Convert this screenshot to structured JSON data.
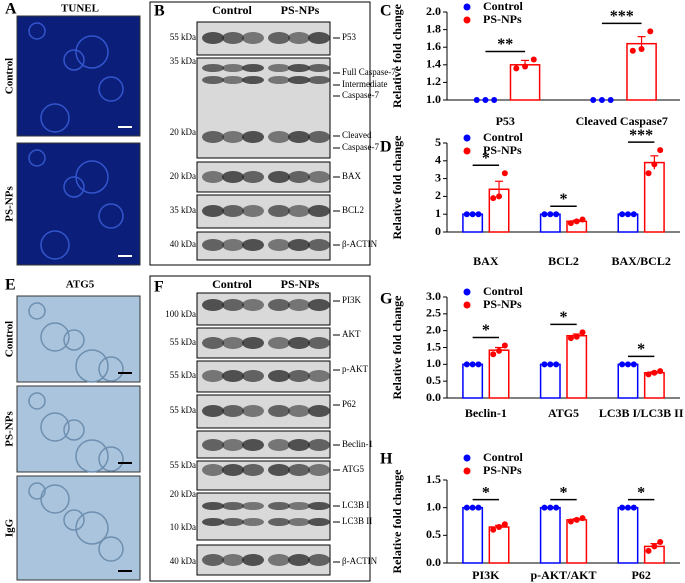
{
  "figure": {
    "images": [
      {
        "letter": "A",
        "title": "TUNEL",
        "labels": [
          "Control",
          "PS-NPs"
        ]
      },
      {
        "letter": "E",
        "title": "ATG5",
        "labels": [
          "Control",
          "PS-NPs",
          "IgG"
        ]
      }
    ],
    "blots": [
      {
        "letter": "B",
        "lanes": [
          "Control",
          "PS-NPs"
        ],
        "rows": [
          {
            "kda": [
              "55 kDa"
            ],
            "labels": [
              "P53"
            ]
          },
          {
            "kda": [
              "35 kDa",
              "20 kDa"
            ],
            "labels": [
              "Full Caspase-7",
              "Intermediate",
              "Caspase-7",
              "Cleaved",
              "Caspase-7"
            ]
          },
          {
            "kda": [
              "20 kDa"
            ],
            "labels": [
              "BAX"
            ]
          },
          {
            "kda": [
              "35 kDa"
            ],
            "labels": [
              "BCL2"
            ]
          },
          {
            "kda": [
              "40 kDa"
            ],
            "labels": [
              "β-ACTIN"
            ]
          }
        ]
      },
      {
        "letter": "F",
        "lanes": [
          "Control",
          "PS-NPs"
        ],
        "rows": [
          {
            "kda": [
              "100 kDa"
            ],
            "labels": [
              "PI3K"
            ]
          },
          {
            "kda": [
              "55 kDa"
            ],
            "labels": [
              "AKT"
            ]
          },
          {
            "kda": [
              "55 kDa"
            ],
            "labels": [
              "p-AKT"
            ]
          },
          {
            "kda": [
              "55 kDa"
            ],
            "labels": [
              "P62"
            ]
          },
          {
            "kda": [],
            "labels": [
              "Beclin-1"
            ]
          },
          {
            "kda": [
              "55 kDa"
            ],
            "labels": [
              "ATG5"
            ]
          },
          {
            "kda": [
              "20 kDa",
              "10 kDa"
            ],
            "labels": [
              "LC3B I",
              "LC3B II"
            ]
          },
          {
            "kda": [
              "40 kDa"
            ],
            "labels": [
              "β-ACTIN"
            ]
          }
        ]
      }
    ]
  },
  "chart_data": [
    {
      "type": "bar",
      "panel_label": "C",
      "ylabel": "Relative fold change",
      "categories": [
        "P53",
        "Cleaved Caspase7"
      ],
      "series": [
        {
          "name": "Control",
          "color": "#0000ff",
          "values": [
            1,
            1
          ],
          "errors": [
            0,
            0
          ],
          "points": [
            [
              1,
              1,
              1
            ],
            [
              1,
              1,
              1
            ]
          ]
        },
        {
          "name": "PS-NPs",
          "color": "#ff0000",
          "values": [
            1.4,
            1.64
          ],
          "errors": [
            0.05,
            0.08
          ],
          "points": [
            [
              1.36,
              1.38,
              1.46
            ],
            [
              1.56,
              1.58,
              1.78
            ]
          ]
        }
      ],
      "significance": [
        "**",
        "***"
      ],
      "ylim": [
        1.0,
        2.0
      ],
      "yticks": [
        {
          "value": 1.0,
          "label": "1.0"
        },
        1.2,
        1.4,
        1.6,
        1.8,
        {
          "value": 2.0,
          "label": "2.0"
        }
      ]
    },
    {
      "type": "bar",
      "panel_label": "D",
      "ylabel": "Relative fold change",
      "categories": [
        "BAX",
        "BCL2",
        "BAX/BCL2"
      ],
      "series": [
        {
          "name": "Control",
          "color": "#0000ff",
          "values": [
            1,
            1,
            1
          ],
          "errors": [
            0,
            0,
            0
          ],
          "points": [
            [
              1,
              1,
              1
            ],
            [
              1,
              1,
              1
            ],
            [
              1,
              1,
              1
            ]
          ]
        },
        {
          "name": "PS-NPs",
          "color": "#ff0000",
          "values": [
            2.4,
            0.6,
            3.9
          ],
          "errors": [
            0.45,
            0.06,
            0.38
          ],
          "points": [
            [
              1.9,
              2.0,
              3.3
            ],
            [
              0.5,
              0.6,
              0.7
            ],
            [
              3.3,
              3.8,
              4.6
            ]
          ]
        }
      ],
      "significance": [
        "*",
        "*",
        "***"
      ],
      "ylim": [
        0,
        5
      ],
      "yticks": [
        0,
        1,
        2,
        3,
        4,
        5
      ]
    },
    {
      "type": "bar",
      "panel_label": "G",
      "ylabel": "Relative fold change",
      "categories": [
        "Beclin-1",
        "ATG5",
        "LC3B I/LC3B II"
      ],
      "series": [
        {
          "name": "Control",
          "color": "#0000ff",
          "values": [
            1,
            1,
            1
          ],
          "errors": [
            0,
            0,
            0
          ],
          "points": [
            [
              1,
              1,
              1
            ],
            [
              1,
              1,
              1
            ],
            [
              1,
              1,
              1
            ]
          ]
        },
        {
          "name": "PS-NPs",
          "color": "#ff0000",
          "values": [
            1.42,
            1.85,
            0.75
          ],
          "errors": [
            0.08,
            0.05,
            0.03
          ],
          "points": [
            [
              1.3,
              1.4,
              1.56
            ],
            [
              1.78,
              1.82,
              1.95
            ],
            [
              0.7,
              0.75,
              0.8
            ]
          ]
        }
      ],
      "significance": [
        "*",
        "*",
        "*"
      ],
      "ylim": [
        0,
        3.0
      ],
      "yticks": [
        {
          "value": 0,
          "label": "0.0"
        },
        0.5,
        {
          "value": 1.0,
          "label": "1.0"
        },
        1.5,
        {
          "value": 2.0,
          "label": "2.0"
        },
        2.5,
        {
          "value": 3.0,
          "label": "3.0"
        }
      ]
    },
    {
      "type": "bar",
      "panel_label": "H",
      "ylabel": "Relative fold change",
      "categories": [
        "PI3K",
        "p-AKT/AKT",
        "P62"
      ],
      "series": [
        {
          "name": "Control",
          "color": "#0000ff",
          "values": [
            1,
            1,
            1
          ],
          "errors": [
            0,
            0,
            0
          ],
          "points": [
            [
              1,
              1,
              1
            ],
            [
              1,
              1,
              1
            ],
            [
              1,
              1,
              1
            ]
          ]
        },
        {
          "name": "PS-NPs",
          "color": "#ff0000",
          "values": [
            0.65,
            0.78,
            0.3
          ],
          "errors": [
            0.03,
            0.02,
            0.05
          ],
          "points": [
            [
              0.6,
              0.65,
              0.7
            ],
            [
              0.75,
              0.78,
              0.81
            ],
            [
              0.22,
              0.3,
              0.38
            ]
          ]
        }
      ],
      "significance": [
        "*",
        "*",
        "*"
      ],
      "ylim": [
        0,
        1.5
      ],
      "yticks": [
        {
          "value": 0,
          "label": "0.0"
        },
        0.5,
        {
          "value": 1.0,
          "label": "1.0"
        },
        1.5
      ]
    }
  ]
}
